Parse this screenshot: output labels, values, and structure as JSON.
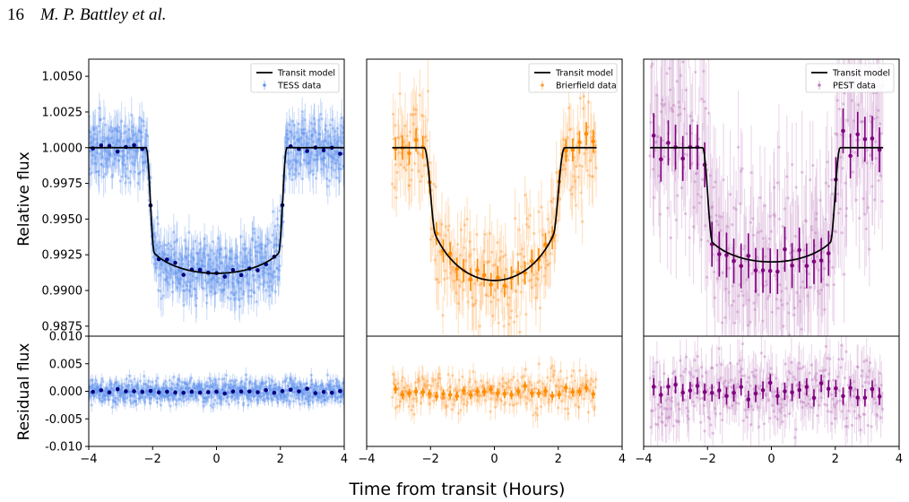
{
  "header": {
    "page_number": "16",
    "authors": "M. P. Battley et al."
  },
  "figure": {
    "xlabel": "Time from transit (Hours)",
    "ylabel_top": "Relative flux",
    "ylabel_bottom": "Residual flux"
  },
  "chart_data": [
    {
      "type": "scatter",
      "panel": "left-top",
      "xlim": [
        -4,
        4
      ],
      "ylim": [
        0.9868,
        1.0062
      ],
      "xticks": [
        -4,
        -2,
        0,
        2,
        4
      ],
      "yticks": [
        0.9875,
        0.99,
        0.9925,
        0.995,
        0.9975,
        1.0,
        1.0025,
        1.005
      ],
      "ytick_labels": [
        "0.9875",
        "0.9900",
        "0.9925",
        "0.9950",
        "0.9975",
        "1.0000",
        "1.0025",
        "1.0050"
      ],
      "legend": [
        "Transit model",
        "TESS data"
      ],
      "legend_loc": "upper right",
      "color": "#6495ED",
      "binned_color": "#000080",
      "model": {
        "depth": 0.0088,
        "t14": 4.4,
        "tau": 0.25,
        "limb": 0.3
      },
      "xrange": [
        -4,
        4
      ],
      "n_raw": 900,
      "raw_noise": 0.0011,
      "n_bin": 31
    },
    {
      "type": "scatter",
      "panel": "mid-top",
      "xlim": [
        -4,
        4
      ],
      "ylim": [
        0.9868,
        1.0062
      ],
      "legend": [
        "Transit model",
        "Brierfield data"
      ],
      "legend_loc": "upper right",
      "color": "#FFA040",
      "binned_color": "#FF8C00",
      "model": {
        "depth": 0.0093,
        "t14": 4.4,
        "tau": 0.35,
        "limb": 0.75
      },
      "xrange": [
        -3.2,
        3.2
      ],
      "n_raw": 300,
      "raw_noise": 0.0018,
      "n_bin": 30
    },
    {
      "type": "scatter",
      "panel": "right-top",
      "xlim": [
        -4,
        4
      ],
      "ylim": [
        0.9868,
        1.0062
      ],
      "legend": [
        "Transit model",
        "PEST data"
      ],
      "legend_loc": "upper right",
      "color": "#C080C0",
      "binned_color": "#800080",
      "model": {
        "depth": 0.008,
        "t14": 4.3,
        "tau": 0.3,
        "limb": 0.35
      },
      "xrange": [
        -3.8,
        3.5
      ],
      "n_raw": 350,
      "raw_noise": 0.0035,
      "n_bin": 32
    },
    {
      "type": "scatter",
      "panel": "left-bottom",
      "xlim": [
        -4,
        4
      ],
      "ylim": [
        -0.01,
        0.01
      ],
      "xticks": [
        -4,
        -2,
        0,
        2,
        4
      ],
      "yticks": [
        -0.01,
        -0.005,
        0,
        0.005,
        0.01
      ],
      "ytick_labels": [
        "-0.010",
        "-0.005",
        "0.000",
        "0.005",
        "0.010"
      ],
      "color": "#6495ED",
      "binned_color": "#000080",
      "xrange": [
        -4,
        4
      ],
      "n_raw": 900,
      "raw_noise": 0.0011,
      "n_bin": 31
    },
    {
      "type": "scatter",
      "panel": "mid-bottom",
      "xlim": [
        -4,
        4
      ],
      "ylim": [
        -0.01,
        0.01
      ],
      "color": "#FFA040",
      "binned_color": "#FF8C00",
      "xrange": [
        -3.2,
        3.2
      ],
      "n_raw": 300,
      "raw_noise": 0.0018,
      "n_bin": 30
    },
    {
      "type": "scatter",
      "panel": "right-bottom",
      "xlim": [
        -4,
        4
      ],
      "ylim": [
        -0.01,
        0.01
      ],
      "color": "#C080C0",
      "binned_color": "#800080",
      "xrange": [
        -3.8,
        3.5
      ],
      "n_raw": 350,
      "raw_noise": 0.0035,
      "n_bin": 32
    }
  ]
}
